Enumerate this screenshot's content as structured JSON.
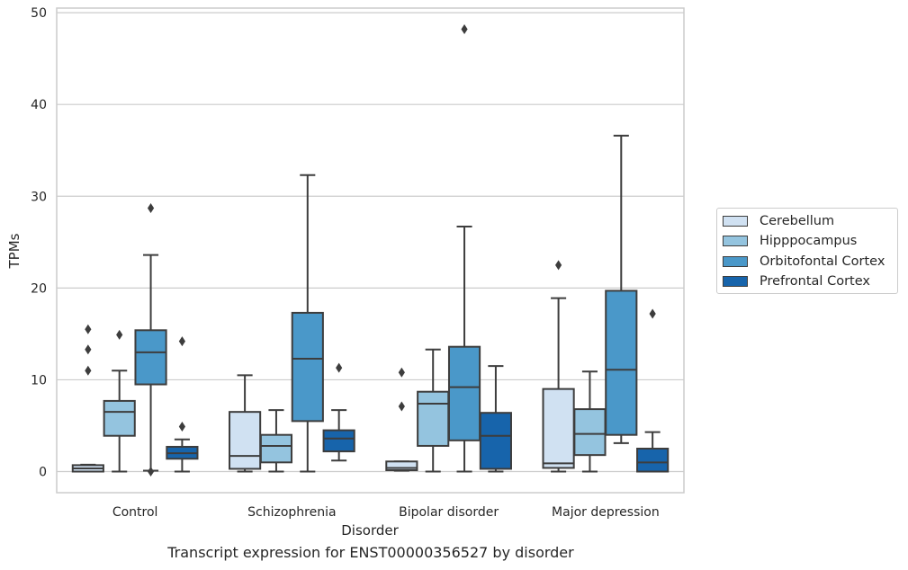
{
  "caption": "Transcript expression for ENST00000356527 by disorder",
  "chart_data": {
    "type": "boxplot",
    "xlabel": "Disorder",
    "ylabel": "TPMs",
    "ylim": [
      -2.3,
      50.5
    ],
    "yticks": [
      0,
      10,
      20,
      30,
      40,
      50
    ],
    "grid": "horizontal",
    "legend_position": "right",
    "categories": [
      "Control",
      "Schizophrenia",
      "Bipolar disorder",
      "Major depression"
    ],
    "series": [
      {
        "name": "Cerebellum",
        "color": "#d0e1f2",
        "boxes": [
          {
            "whisker_low": 0.0,
            "q1": 0.0,
            "median": 0.35,
            "q3": 0.7,
            "whisker_high": 0.75,
            "outliers": [
              11.0,
              13.3,
              15.5
            ]
          },
          {
            "whisker_low": 0.0,
            "q1": 0.3,
            "median": 1.7,
            "q3": 6.5,
            "whisker_high": 10.5,
            "outliers": []
          },
          {
            "whisker_low": 0.1,
            "q1": 0.15,
            "median": 0.4,
            "q3": 1.1,
            "whisker_high": 1.1,
            "outliers": [
              7.1,
              10.8
            ]
          },
          {
            "whisker_low": 0.0,
            "q1": 0.4,
            "median": 0.9,
            "q3": 9.0,
            "whisker_high": 18.9,
            "outliers": [
              22.5
            ]
          }
        ]
      },
      {
        "name": "Hipppocampus",
        "color": "#94c4df",
        "boxes": [
          {
            "whisker_low": 0.0,
            "q1": 3.9,
            "median": 6.5,
            "q3": 7.7,
            "whisker_high": 11.0,
            "outliers": [
              14.9
            ]
          },
          {
            "whisker_low": 0.0,
            "q1": 1.0,
            "median": 2.8,
            "q3": 4.0,
            "whisker_high": 6.7,
            "outliers": []
          },
          {
            "whisker_low": 0.0,
            "q1": 2.8,
            "median": 7.4,
            "q3": 8.7,
            "whisker_high": 13.3,
            "outliers": []
          },
          {
            "whisker_low": 0.0,
            "q1": 1.8,
            "median": 4.1,
            "q3": 6.8,
            "whisker_high": 10.9,
            "outliers": []
          }
        ]
      },
      {
        "name": "Orbitofontal Cortex",
        "color": "#4a98c9",
        "boxes": [
          {
            "whisker_low": 0.1,
            "q1": 9.5,
            "median": 13.0,
            "q3": 15.4,
            "whisker_high": 23.6,
            "outliers": [
              0.0,
              28.7
            ]
          },
          {
            "whisker_low": 0.0,
            "q1": 5.5,
            "median": 12.3,
            "q3": 17.3,
            "whisker_high": 32.3,
            "outliers": []
          },
          {
            "whisker_low": 0.0,
            "q1": 3.4,
            "median": 9.2,
            "q3": 13.6,
            "whisker_high": 26.7,
            "outliers": [
              48.2
            ]
          },
          {
            "whisker_low": 3.1,
            "q1": 4.0,
            "median": 11.1,
            "q3": 19.7,
            "whisker_high": 36.6,
            "outliers": []
          }
        ]
      },
      {
        "name": "Prefrontal Cortex",
        "color": "#1764ab",
        "boxes": [
          {
            "whisker_low": 0.0,
            "q1": 1.4,
            "median": 2.0,
            "q3": 2.7,
            "whisker_high": 3.5,
            "outliers": [
              4.9,
              14.2
            ]
          },
          {
            "whisker_low": 1.2,
            "q1": 2.2,
            "median": 3.6,
            "q3": 4.5,
            "whisker_high": 6.7,
            "outliers": [
              11.3
            ]
          },
          {
            "whisker_low": 0.0,
            "q1": 0.3,
            "median": 3.9,
            "q3": 6.4,
            "whisker_high": 11.5,
            "outliers": []
          },
          {
            "whisker_low": 0.0,
            "q1": 0.0,
            "median": 1.0,
            "q3": 2.5,
            "whisker_high": 4.3,
            "outliers": [
              17.2
            ]
          }
        ]
      }
    ]
  }
}
